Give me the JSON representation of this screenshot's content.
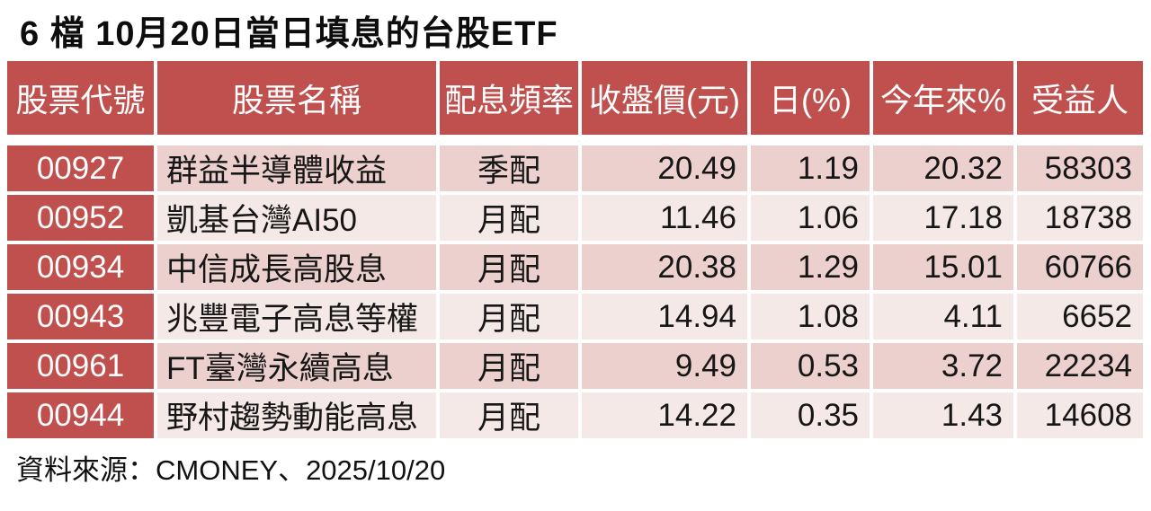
{
  "title": "6 檔 10月20日當日填息的台股ETF",
  "footer": {
    "source": "資料來源：CMONEY、2025/10/20"
  },
  "colors": {
    "header_bg": "#c0504d",
    "code_column_bg": "#c0504d",
    "row_odd_bg": "#ebd0cd",
    "row_even_bg": "#f5e9e7",
    "header_text": "#ffffff",
    "body_text": "#161616"
  },
  "table": {
    "headers": [
      "股票代號",
      "股票名稱",
      "配息頻率",
      "收盤價(元)",
      "日(%)",
      "今年來%",
      "受益人"
    ],
    "rows": [
      {
        "code": "00927",
        "name": "群益半導體收益",
        "freq": "季配",
        "close": "20.49",
        "day": "1.19",
        "ytd": "20.32",
        "holders": "58303"
      },
      {
        "code": "00952",
        "name": "凱基台灣AI50",
        "freq": "月配",
        "close": "11.46",
        "day": "1.06",
        "ytd": "17.18",
        "holders": "18738"
      },
      {
        "code": "00934",
        "name": "中信成長高股息",
        "freq": "月配",
        "close": "20.38",
        "day": "1.29",
        "ytd": "15.01",
        "holders": "60766"
      },
      {
        "code": "00943",
        "name": "兆豐電子高息等權",
        "freq": "月配",
        "close": "14.94",
        "day": "1.08",
        "ytd": "4.11",
        "holders": "6652"
      },
      {
        "code": "00961",
        "name": "FT臺灣永續高息",
        "freq": "月配",
        "close": "9.49",
        "day": "0.53",
        "ytd": "3.72",
        "holders": "22234"
      },
      {
        "code": "00944",
        "name": "野村趨勢動能高息",
        "freq": "月配",
        "close": "14.22",
        "day": "0.35",
        "ytd": "1.43",
        "holders": "14608"
      }
    ]
  },
  "chart_data": {
    "type": "table",
    "title": "6 檔 10月20日當日填息的台股ETF",
    "columns": [
      "股票代號",
      "股票名稱",
      "配息頻率",
      "收盤價(元)",
      "日(%)",
      "今年來%",
      "受益人"
    ],
    "rows": [
      [
        "00927",
        "群益半導體收益",
        "季配",
        20.49,
        1.19,
        20.32,
        58303
      ],
      [
        "00952",
        "凱基台灣AI50",
        "月配",
        11.46,
        1.06,
        17.18,
        18738
      ],
      [
        "00934",
        "中信成長高股息",
        "月配",
        20.38,
        1.29,
        15.01,
        60766
      ],
      [
        "00943",
        "兆豐電子高息等權",
        "月配",
        14.94,
        1.08,
        4.11,
        6652
      ],
      [
        "00961",
        "FT臺灣永續高息",
        "月配",
        9.49,
        0.53,
        3.72,
        22234
      ],
      [
        "00944",
        "野村趨勢動能高息",
        "月配",
        14.22,
        0.35,
        1.43,
        14608
      ]
    ],
    "source": "資料來源：CMONEY、2025/10/20"
  }
}
